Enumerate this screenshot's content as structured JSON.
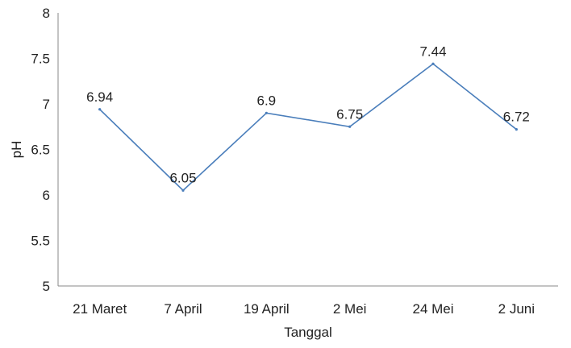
{
  "chart_data": {
    "type": "line",
    "title": "",
    "xlabel": "Tanggal",
    "ylabel": "pH",
    "categories": [
      "21 Maret",
      "7 April",
      "19 April",
      "2 Mei",
      "24 Mei",
      "2 Juni"
    ],
    "series": [
      {
        "values": [
          6.94,
          6.05,
          6.9,
          6.75,
          7.44,
          6.72
        ]
      }
    ],
    "data_labels": [
      "6.94",
      "6.05",
      "6.9",
      "6.75",
      "7.44",
      "6.72"
    ],
    "ylim": [
      5,
      8
    ],
    "yticks": [
      5,
      5.5,
      6,
      6.5,
      7,
      7.5,
      8
    ],
    "ytick_labels": [
      "5",
      "5.5",
      "6",
      "6.5",
      "7",
      "7.5",
      "8"
    ],
    "grid": false,
    "legend": "none",
    "colors": {
      "line": "#4a7ebb",
      "axis": "#888888",
      "text": "#222222"
    }
  }
}
